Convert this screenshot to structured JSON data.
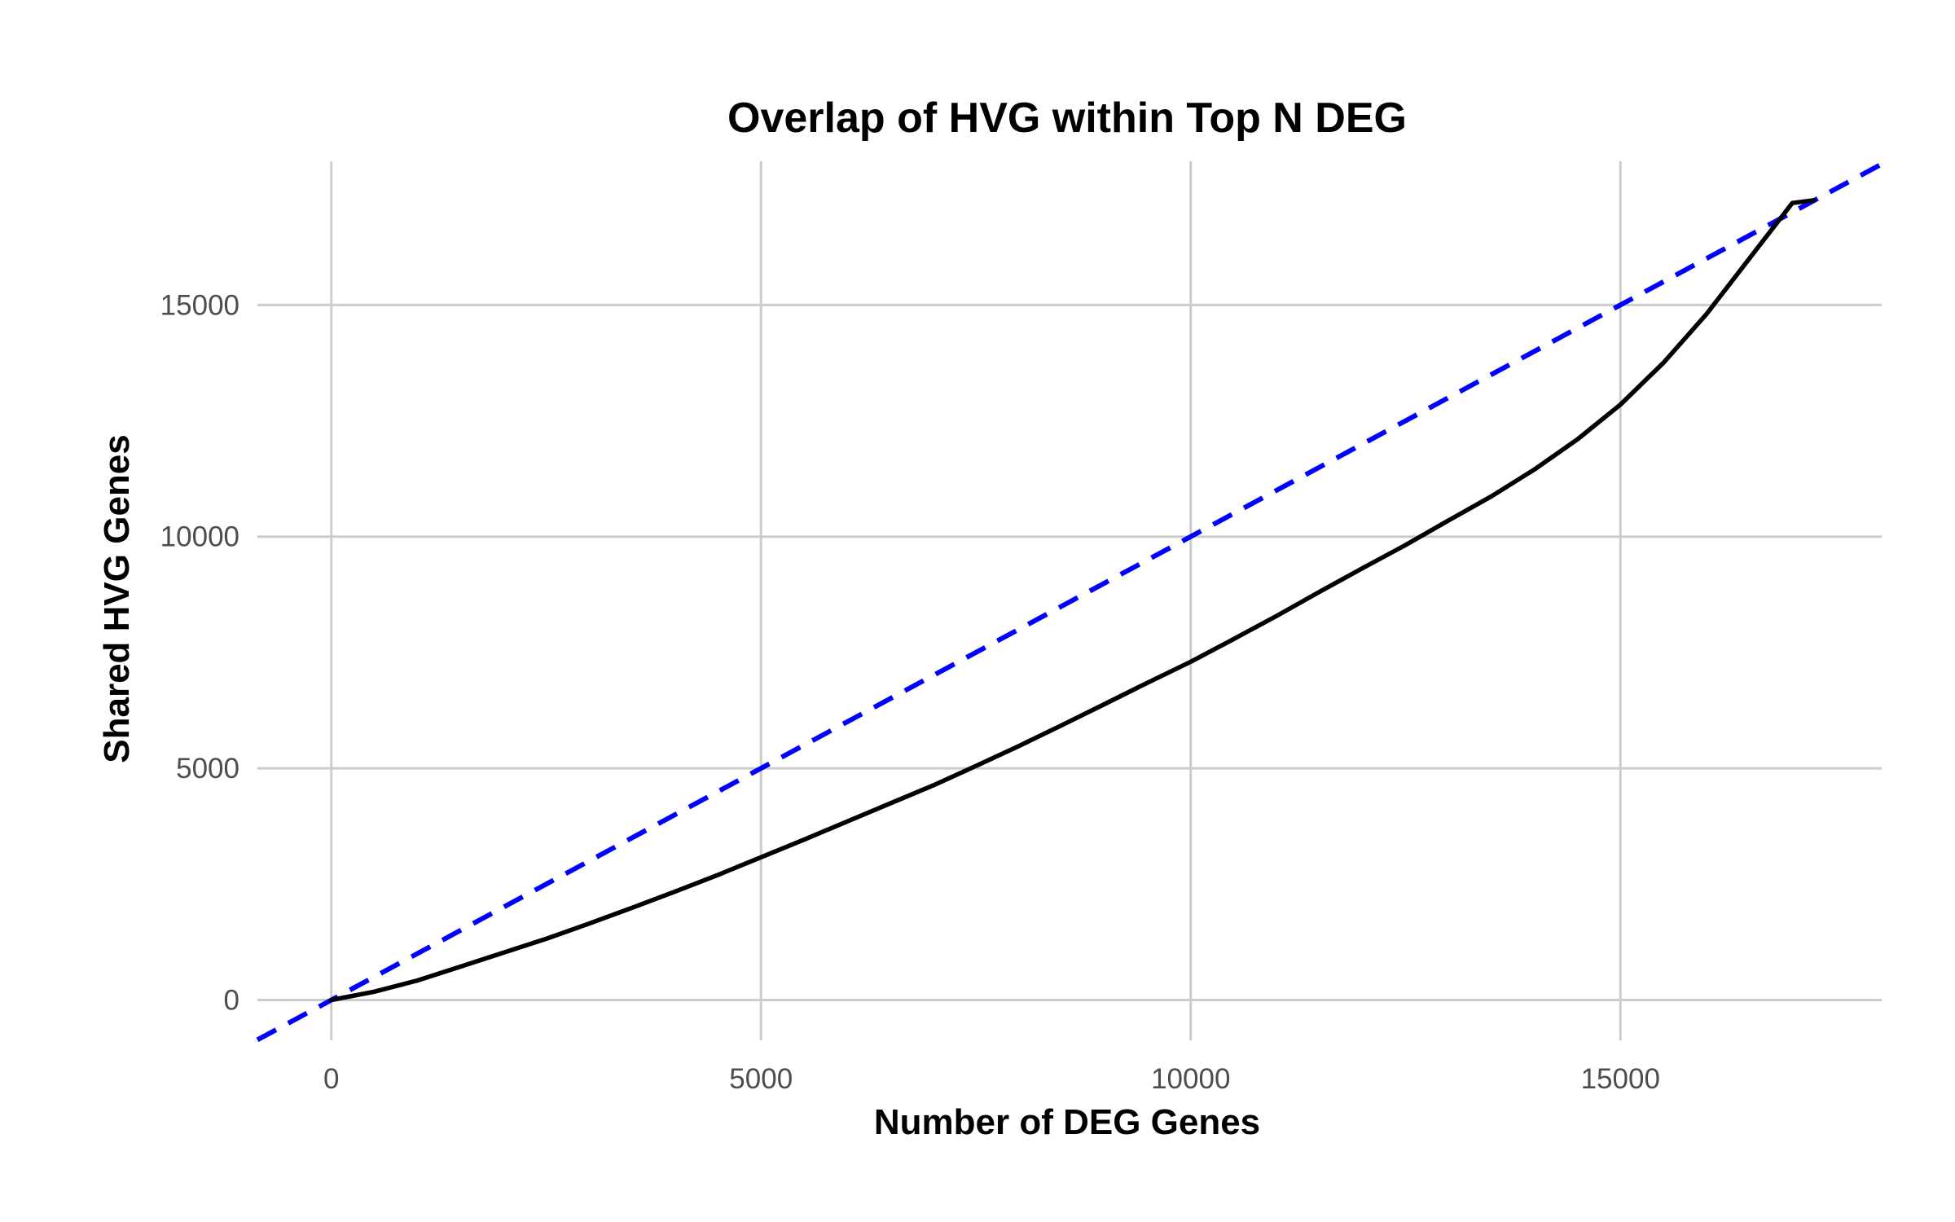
{
  "chart_data": {
    "type": "line",
    "title": "Overlap of HVG within Top N DEG",
    "xlabel": "Number of DEG Genes",
    "ylabel": "Shared HVG Genes",
    "xlim": [
      -860,
      18040
    ],
    "ylim": [
      -870,
      18100
    ],
    "x_ticks": [
      0,
      5000,
      10000,
      15000
    ],
    "y_ticks": [
      0,
      5000,
      10000,
      15000
    ],
    "x_tick_labels": [
      "0",
      "5000",
      "10000",
      "15000"
    ],
    "y_tick_labels": [
      "0",
      "5000",
      "10000",
      "15000"
    ],
    "grid": true,
    "legend": "none",
    "series": [
      {
        "style": "solid",
        "color": "#000000",
        "x": [
          0,
          500,
          1000,
          1500,
          2000,
          2500,
          3000,
          3500,
          4000,
          4500,
          5000,
          5500,
          6000,
          6500,
          7000,
          7500,
          8000,
          8500,
          9000,
          9500,
          10000,
          10500,
          11000,
          11500,
          12000,
          12500,
          13000,
          13500,
          14000,
          14500,
          15000,
          15500,
          16000,
          16500,
          17000,
          17250
        ],
        "y": [
          0,
          180,
          420,
          720,
          1020,
          1320,
          1650,
          1990,
          2340,
          2700,
          3080,
          3460,
          3850,
          4240,
          4630,
          5050,
          5480,
          5930,
          6390,
          6850,
          7300,
          7790,
          8290,
          8810,
          9320,
          9820,
          10350,
          10870,
          11450,
          12100,
          12850,
          13750,
          14800,
          16000,
          17200,
          17260
        ]
      },
      {
        "style": "dashed",
        "color": "#0000ff",
        "reference": "y = x",
        "x": [
          -860,
          18040
        ],
        "y": [
          -860,
          18040
        ]
      }
    ]
  }
}
